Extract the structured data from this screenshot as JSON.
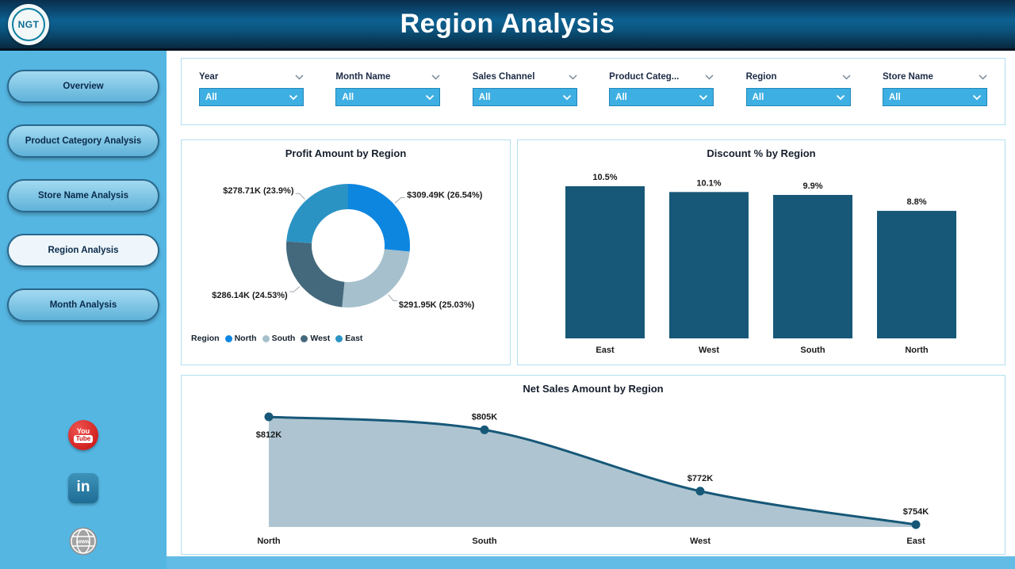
{
  "header": {
    "title": "Region Analysis",
    "logo": "NGT"
  },
  "sidebar": {
    "items": [
      {
        "label": "Overview",
        "active": false
      },
      {
        "label": "Product Category Analysis",
        "active": false
      },
      {
        "label": "Store Name Analysis",
        "active": false
      },
      {
        "label": "Region Analysis",
        "active": true
      },
      {
        "label": "Month Analysis",
        "active": false
      }
    ],
    "social": [
      {
        "name": "youtube",
        "text_top": "You",
        "text_bottom": "Tube"
      },
      {
        "name": "linkedin",
        "text": "in"
      },
      {
        "name": "website",
        "text": "www"
      }
    ]
  },
  "filters": [
    {
      "label": "Year",
      "value": "All"
    },
    {
      "label": "Month Name",
      "value": "All"
    },
    {
      "label": "Sales Channel",
      "value": "All"
    },
    {
      "label": "Product Categ...",
      "value": "All"
    },
    {
      "label": "Region",
      "value": "All"
    },
    {
      "label": "Store Name",
      "value": "All"
    }
  ],
  "chart_data": [
    {
      "type": "pie",
      "title": "Profit Amount by Region",
      "legend_title": "Region",
      "legend_position": "bottom",
      "slices": [
        {
          "label": "North",
          "value_display": "$309.49K (26.54%)",
          "value_k": 309.49,
          "pct": 26.54,
          "color": "#0d86e0"
        },
        {
          "label": "South",
          "value_display": "$291.95K (25.03%)",
          "value_k": 291.95,
          "pct": 25.03,
          "color": "#a6c0cd"
        },
        {
          "label": "West",
          "value_display": "$286.14K (24.53%)",
          "value_k": 286.14,
          "pct": 24.53,
          "color": "#44697c"
        },
        {
          "label": "East",
          "value_display": "$278.71K (23.9%)",
          "value_k": 278.71,
          "pct": 23.9,
          "color": "#2b93c4"
        }
      ]
    },
    {
      "type": "bar",
      "title": "Discount % by Region",
      "categories": [
        "East",
        "West",
        "South",
        "North"
      ],
      "values": [
        10.5,
        10.1,
        9.9,
        8.8
      ],
      "value_labels": [
        "10.5%",
        "10.1%",
        "9.9%",
        "8.8%"
      ],
      "bar_color": "#175878",
      "ylim": [
        0,
        10.5
      ],
      "grid": false
    },
    {
      "type": "area",
      "title": "Net Sales Amount by Region",
      "categories": [
        "North",
        "South",
        "West",
        "East"
      ],
      "values": [
        812,
        805,
        772,
        754
      ],
      "value_labels": [
        "$812K",
        "$805K",
        "$772K",
        "$754K"
      ],
      "line_color": "#175878",
      "fill_color": "#aec5d1",
      "grid": false
    }
  ],
  "colors": {
    "sidebar_bg": "#55b6e2",
    "slicer_blue": "#3eafe2",
    "panel_border": "#b3def2",
    "label_text": "#1a1a1a"
  }
}
